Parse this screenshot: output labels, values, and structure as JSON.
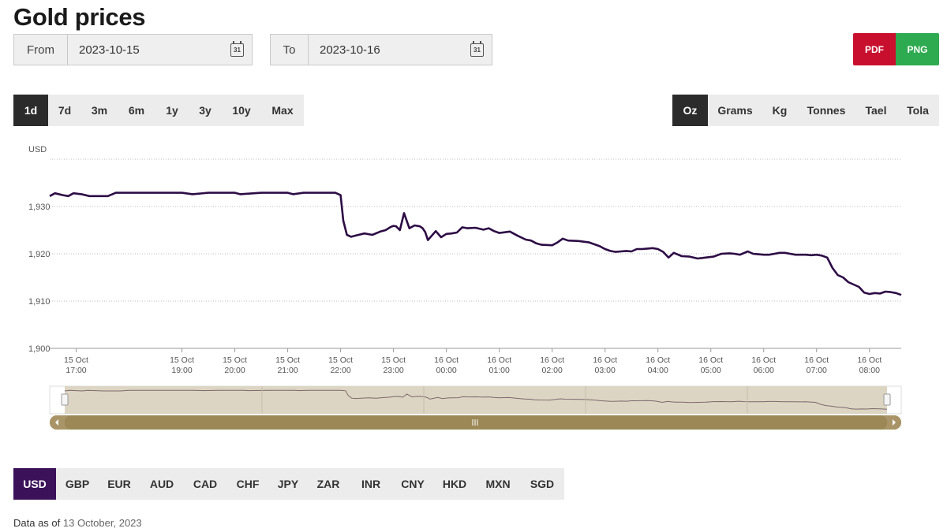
{
  "page": {
    "title": "Gold prices"
  },
  "date_range": {
    "from_label": "From",
    "from_value": "2023-10-15",
    "to_label": "To",
    "to_value": "2023-10-16",
    "calendar_icon": "calendar-icon",
    "calendar_day": "31"
  },
  "export": {
    "pdf_label": "PDF",
    "png_label": "PNG",
    "pdf_color": "#c8102e",
    "png_color": "#2eaa50"
  },
  "range_buttons": [
    {
      "label": "1d",
      "active": true
    },
    {
      "label": "7d"
    },
    {
      "label": "3m"
    },
    {
      "label": "6m"
    },
    {
      "label": "1y"
    },
    {
      "label": "3y"
    },
    {
      "label": "10y"
    },
    {
      "label": "Max"
    }
  ],
  "unit_buttons": [
    {
      "label": "Oz",
      "active": true
    },
    {
      "label": "Grams"
    },
    {
      "label": "Kg"
    },
    {
      "label": "Tonnes"
    },
    {
      "label": "Tael"
    },
    {
      "label": "Tola"
    }
  ],
  "currency_buttons": [
    {
      "label": "USD",
      "active": true
    },
    {
      "label": "GBP"
    },
    {
      "label": "EUR"
    },
    {
      "label": "AUD"
    },
    {
      "label": "CAD"
    },
    {
      "label": "CHF"
    },
    {
      "label": "JPY"
    },
    {
      "label": "ZAR"
    },
    {
      "label": "INR"
    },
    {
      "label": "CNY"
    },
    {
      "label": "HKD"
    },
    {
      "label": "MXN"
    },
    {
      "label": "SGD"
    }
  ],
  "footer": {
    "prefix": "Data as of",
    "date": "13 October, 2023"
  },
  "colors": {
    "line": "#2d0c45",
    "active_dark": "#2b2b2b",
    "active_currency": "#3b1259",
    "navigator_fill": "#ddd5c3",
    "navigator_bar": "#a89466"
  },
  "chart_data": {
    "type": "line",
    "ylabel": "USD",
    "ylim": [
      1900,
      1940
    ],
    "yticks": [
      1900,
      1910,
      1920,
      1930
    ],
    "ytick_labels": [
      "1,900",
      "1,910",
      "1,920",
      "1,930"
    ],
    "xlim": [
      16.5,
      8.6
    ],
    "xticks": [
      {
        "h": 17,
        "line1": "15 Oct",
        "line2": "17:00"
      },
      {
        "h": 19,
        "line1": "15 Oct",
        "line2": "19:00"
      },
      {
        "h": 20,
        "line1": "15 Oct",
        "line2": "20:00"
      },
      {
        "h": 21,
        "line1": "15 Oct",
        "line2": "21:00"
      },
      {
        "h": 22,
        "line1": "15 Oct",
        "line2": "22:00"
      },
      {
        "h": 23,
        "line1": "15 Oct",
        "line2": "23:00"
      },
      {
        "h": 0,
        "line1": "16 Oct",
        "line2": "00:00"
      },
      {
        "h": 1,
        "line1": "16 Oct",
        "line2": "01:00"
      },
      {
        "h": 2,
        "line1": "16 Oct",
        "line2": "02:00"
      },
      {
        "h": 3,
        "line1": "16 Oct",
        "line2": "03:00"
      },
      {
        "h": 4,
        "line1": "16 Oct",
        "line2": "04:00"
      },
      {
        "h": 5,
        "line1": "16 Oct",
        "line2": "05:00"
      },
      {
        "h": 6,
        "line1": "16 Oct",
        "line2": "06:00"
      },
      {
        "h": 7,
        "line1": "16 Oct",
        "line2": "07:00"
      },
      {
        "h": 8,
        "line1": "16 Oct",
        "line2": "08:00"
      }
    ],
    "grid": true,
    "series": [
      {
        "color": "#2d0c45",
        "x": [
          16.5,
          16.6,
          16.75,
          16.85,
          16.95,
          17.1,
          17.25,
          17.4,
          17.6,
          17.75,
          18.0,
          18.5,
          19.0,
          19.2,
          19.5,
          20.0,
          20.1,
          20.5,
          21.0,
          21.1,
          21.3,
          21.5,
          21.9,
          22.0,
          22.05,
          22.12,
          22.2,
          22.3,
          22.45,
          22.6,
          22.75,
          22.85,
          22.95,
          23.0,
          23.05,
          23.12,
          23.2,
          23.3,
          23.4,
          23.5,
          23.55,
          23.6,
          23.65,
          23.8,
          23.9,
          24.0,
          24.1,
          24.2,
          24.3,
          24.4,
          24.55,
          24.7,
          24.8,
          24.9,
          25.0,
          25.2,
          25.35,
          25.5,
          25.6,
          25.7,
          25.8,
          26.0,
          26.1,
          26.2,
          26.3,
          26.5,
          26.7,
          26.9,
          27.0,
          27.1,
          27.2,
          27.3,
          27.4,
          27.5,
          27.6,
          27.7,
          27.8,
          27.9,
          28.0,
          28.1,
          28.2,
          28.3,
          28.45,
          28.6,
          28.75,
          28.9,
          29.05,
          29.2,
          29.35,
          29.45,
          29.55,
          29.7,
          29.8,
          29.9,
          30.0,
          30.1,
          30.2,
          30.3,
          30.4,
          30.5,
          30.6,
          30.7,
          30.8,
          30.9,
          31.0,
          31.1,
          31.2,
          31.3,
          31.4,
          31.5,
          31.6,
          31.7,
          31.8,
          31.9,
          32.0,
          32.1,
          32.2,
          32.3,
          32.4,
          32.5,
          32.6
        ],
        "y": [
          1932.2,
          1932.8,
          1932.4,
          1932.2,
          1932.8,
          1932.6,
          1932.2,
          1932.2,
          1932.2,
          1932.9,
          1932.9,
          1932.9,
          1932.9,
          1932.6,
          1932.9,
          1932.9,
          1932.6,
          1932.9,
          1932.9,
          1932.6,
          1932.9,
          1932.9,
          1932.9,
          1932.4,
          1927.0,
          1924.0,
          1923.6,
          1923.9,
          1924.3,
          1924.0,
          1924.7,
          1925.0,
          1925.7,
          1925.9,
          1925.8,
          1925.0,
          1928.6,
          1925.4,
          1926.0,
          1925.8,
          1925.4,
          1924.6,
          1922.9,
          1924.8,
          1923.5,
          1924.2,
          1924.3,
          1924.5,
          1925.6,
          1925.4,
          1925.5,
          1925.1,
          1925.4,
          1924.8,
          1924.4,
          1924.7,
          1923.8,
          1923.0,
          1922.8,
          1922.2,
          1921.9,
          1921.8,
          1922.4,
          1923.2,
          1922.8,
          1922.7,
          1922.4,
          1921.6,
          1921.0,
          1920.6,
          1920.4,
          1920.5,
          1920.6,
          1920.5,
          1921.0,
          1921.0,
          1921.1,
          1921.2,
          1921.0,
          1920.4,
          1919.2,
          1920.2,
          1919.5,
          1919.4,
          1919.0,
          1919.2,
          1919.4,
          1920.0,
          1920.1,
          1920.0,
          1919.8,
          1920.5,
          1920.0,
          1919.9,
          1919.8,
          1919.8,
          1920.0,
          1920.2,
          1920.2,
          1920.0,
          1919.8,
          1919.8,
          1919.8,
          1919.7,
          1919.8,
          1919.6,
          1919.2,
          1917.0,
          1915.5,
          1915.0,
          1914.0,
          1913.5,
          1913.0,
          1911.8,
          1911.5,
          1911.7,
          1911.6,
          1912.0,
          1911.9,
          1911.7,
          1911.3
        ],
        "note_x_offset": 0
      }
    ],
    "navigator": {
      "present": true
    }
  }
}
